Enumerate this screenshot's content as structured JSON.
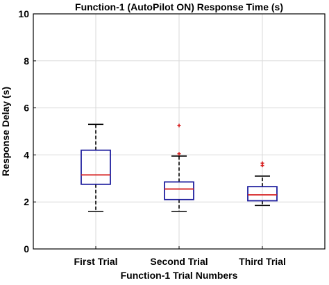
{
  "chart_data": {
    "type": "box",
    "title": "Function-1 (AutoPilot ON) Response Time (s)",
    "xlabel": "Function-1 Trial Numbers",
    "ylabel": "Response Delay (s)",
    "ylim": [
      0,
      10
    ],
    "yticks": [
      0,
      2,
      4,
      6,
      8,
      10
    ],
    "grid": true,
    "categories": [
      "First Trial",
      "Second Trial",
      "Third Trial"
    ],
    "boxes": [
      {
        "category": "First Trial",
        "whisker_low": 1.6,
        "q1": 2.75,
        "median": 3.15,
        "q3": 4.2,
        "whisker_high": 5.3,
        "outliers": []
      },
      {
        "category": "Second Trial",
        "whisker_low": 1.6,
        "q1": 2.1,
        "median": 2.55,
        "q3": 2.85,
        "whisker_high": 3.95,
        "outliers": [
          4.05,
          5.25
        ]
      },
      {
        "category": "Third Trial",
        "whisker_low": 1.85,
        "q1": 2.05,
        "median": 2.3,
        "q3": 2.65,
        "whisker_high": 3.1,
        "outliers": [
          3.55,
          3.65
        ]
      }
    ],
    "colors": {
      "box": "#1f1f9e",
      "median": "#d62020",
      "whisker": "#000000",
      "outlier": "#d62020",
      "grid": "#d9d9d9",
      "axes": "#000000"
    }
  }
}
